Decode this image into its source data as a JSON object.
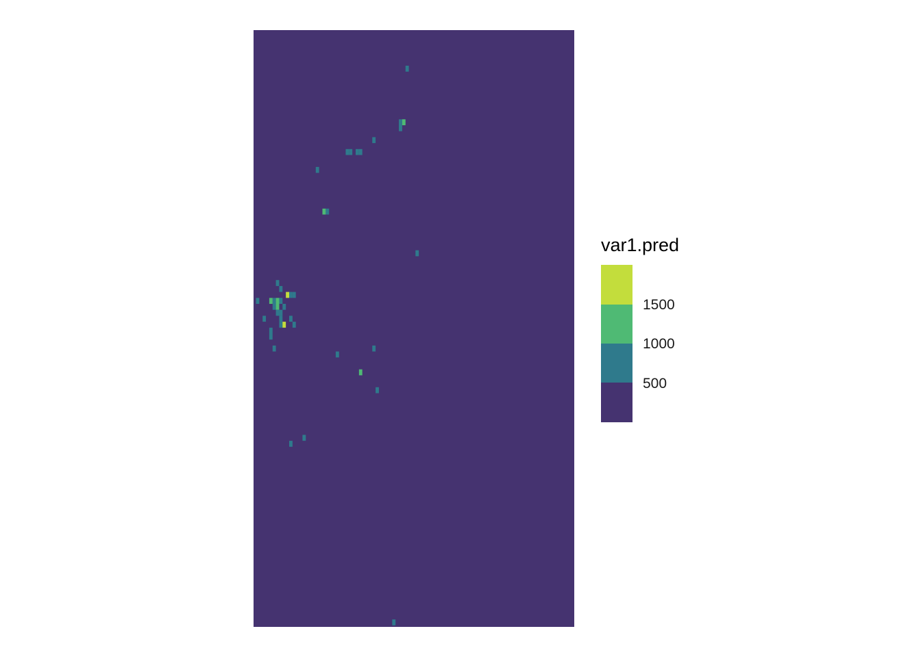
{
  "chart_data": {
    "type": "heatmap",
    "title": "",
    "xlabel": "",
    "ylabel": "",
    "axes_visible": false,
    "grid": false,
    "background_value_bin": "0-500",
    "cells": [
      {
        "x": 45,
        "y": 93,
        "v": 750
      },
      {
        "x": 43,
        "y": 84,
        "v": 750
      },
      {
        "x": 44,
        "y": 84,
        "v": 1200
      },
      {
        "x": 43,
        "y": 83,
        "v": 750
      },
      {
        "x": 27,
        "y": 79,
        "v": 750
      },
      {
        "x": 28,
        "y": 79,
        "v": 750
      },
      {
        "x": 30,
        "y": 79,
        "v": 750
      },
      {
        "x": 31,
        "y": 79,
        "v": 750
      },
      {
        "x": 35,
        "y": 81,
        "v": 750
      },
      {
        "x": 18,
        "y": 76,
        "v": 750
      },
      {
        "x": 20,
        "y": 69,
        "v": 1200
      },
      {
        "x": 21,
        "y": 69,
        "v": 750
      },
      {
        "x": 48,
        "y": 62,
        "v": 750
      },
      {
        "x": 6,
        "y": 57,
        "v": 750
      },
      {
        "x": 9,
        "y": 55,
        "v": 1700
      },
      {
        "x": 10,
        "y": 55,
        "v": 750
      },
      {
        "x": 11,
        "y": 55,
        "v": 750
      },
      {
        "x": 7,
        "y": 56,
        "v": 750
      },
      {
        "x": 5,
        "y": 54,
        "v": 750
      },
      {
        "x": 0,
        "y": 54,
        "v": 750
      },
      {
        "x": 4,
        "y": 54,
        "v": 1200
      },
      {
        "x": 5,
        "y": 53,
        "v": 750
      },
      {
        "x": 6,
        "y": 54,
        "v": 1200
      },
      {
        "x": 7,
        "y": 54,
        "v": 750
      },
      {
        "x": 6,
        "y": 53,
        "v": 1200
      },
      {
        "x": 8,
        "y": 53,
        "v": 750
      },
      {
        "x": 6,
        "y": 52,
        "v": 750
      },
      {
        "x": 7,
        "y": 52,
        "v": 750
      },
      {
        "x": 2,
        "y": 51,
        "v": 750
      },
      {
        "x": 7,
        "y": 51,
        "v": 750
      },
      {
        "x": 10,
        "y": 51,
        "v": 750
      },
      {
        "x": 7,
        "y": 50,
        "v": 750
      },
      {
        "x": 8,
        "y": 50,
        "v": 1700
      },
      {
        "x": 11,
        "y": 50,
        "v": 750
      },
      {
        "x": 4,
        "y": 48,
        "v": 750
      },
      {
        "x": 4,
        "y": 49,
        "v": 750
      },
      {
        "x": 5,
        "y": 46,
        "v": 750
      },
      {
        "x": 35,
        "y": 46,
        "v": 750
      },
      {
        "x": 24,
        "y": 45,
        "v": 750
      },
      {
        "x": 31,
        "y": 42,
        "v": 1200
      },
      {
        "x": 36,
        "y": 39,
        "v": 750
      },
      {
        "x": 14,
        "y": 31,
        "v": 750
      },
      {
        "x": 10,
        "y": 30,
        "v": 750
      },
      {
        "x": 41,
        "y": 0,
        "v": 750
      }
    ],
    "color_scale": {
      "title": "var1.pred",
      "ticks": [
        "500",
        "1000",
        "1500"
      ],
      "bins": [
        {
          "range": "0-500",
          "color": "#453370"
        },
        {
          "range": "500-1000",
          "color": "#2f7a8c"
        },
        {
          "range": "1000-1500",
          "color": "#4fba74"
        },
        {
          "range": "1500-2000",
          "color": "#c3dd3c"
        }
      ]
    }
  }
}
